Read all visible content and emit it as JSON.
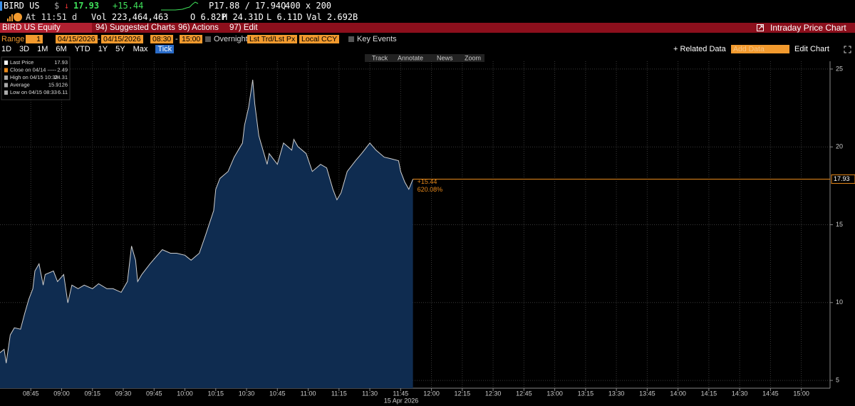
{
  "header": {
    "ticker": "BIRD US",
    "currency": "$",
    "arrow": "↓",
    "price": "17.93",
    "change": "+15.44",
    "bid_ask": "P17.88 / 17.94Q",
    "size": "400 x 200",
    "time": "At 11:51 d",
    "volume": "Vol 223,464,463",
    "open": "O 6.82P",
    "high": "H 24.31D",
    "low": "L 6.11D",
    "value": "Val 2.692B"
  },
  "menu": {
    "security": "BIRD US Equity",
    "items": [
      "94) Suggested Charts",
      "96) Actions",
      "97) Edit"
    ],
    "title": "Intraday Price Chart"
  },
  "controls": {
    "range_label": "Range",
    "range": "1",
    "start_date": "04/15/2026",
    "dash": "-",
    "end_date": "04/15/2026",
    "start_time": "08:30",
    "end_time": "15:00",
    "overnight": "Overnight",
    "price_field": "Lst Trd/Lst Px",
    "currency": "Local CCY",
    "key_events": "Key Events",
    "periods": [
      "1D",
      "3D",
      "1M",
      "6M",
      "YTD",
      "1Y",
      "5Y",
      "Max",
      "Tick"
    ],
    "related": "+ Related Data",
    "add_data": "Add Data",
    "edit_chart": "Edit Chart"
  },
  "toolbar": [
    "Track",
    "Annotate",
    "News",
    "Zoom"
  ],
  "chart_data": {
    "type": "area",
    "color": "#0f2c50",
    "line_color": "#cfcfcf",
    "last_line_color": "#e8891a",
    "grid": true,
    "x_label": "15 Apr 2026",
    "x": [
      510,
      512,
      513,
      515,
      517,
      520,
      522,
      524,
      526,
      527,
      529,
      531,
      532,
      536,
      538,
      541,
      543,
      545,
      548,
      551,
      555,
      558,
      562,
      565,
      569,
      572,
      574,
      576,
      577,
      579,
      583,
      586,
      589,
      593,
      596,
      600,
      603,
      607,
      610,
      614,
      615,
      617,
      621,
      624,
      628,
      629,
      631,
      633,
      634,
      636,
      638,
      640,
      641,
      645,
      648,
      652,
      653,
      655,
      659,
      662,
      666,
      669,
      672,
      674,
      676,
      679,
      683,
      686,
      690,
      693,
      697,
      700,
      704,
      705,
      707,
      709,
      711
    ],
    "values": [
      6.78,
      7.0,
      6.11,
      7.92,
      8.38,
      8.29,
      9.29,
      10.21,
      10.89,
      12.03,
      12.49,
      11.12,
      11.8,
      12.03,
      11.35,
      11.8,
      9.98,
      11.12,
      10.89,
      11.12,
      10.89,
      11.21,
      10.89,
      10.89,
      10.66,
      11.35,
      13.63,
      12.72,
      11.35,
      11.8,
      12.49,
      12.95,
      13.4,
      13.17,
      13.17,
      13.04,
      12.72,
      13.17,
      14.32,
      15.91,
      17.28,
      17.97,
      18.42,
      19.34,
      20.25,
      21.39,
      22.53,
      24.31,
      22.76,
      20.71,
      19.79,
      18.88,
      19.57,
      18.88,
      20.25,
      19.79,
      20.48,
      20.02,
      19.57,
      18.42,
      18.88,
      18.65,
      17.28,
      16.6,
      17.05,
      18.42,
      19.11,
      19.57,
      20.25,
      19.79,
      19.34,
      19.25,
      19.11,
      18.42,
      17.74,
      17.28,
      17.93
    ],
    "xlim": [
      510,
      914
    ],
    "ylim": [
      4.5,
      25.5
    ],
    "xticks": [
      {
        "value": 525,
        "label": "08:45"
      },
      {
        "value": 540,
        "label": "09:00"
      },
      {
        "value": 555,
        "label": "09:15"
      },
      {
        "value": 570,
        "label": "09:30"
      },
      {
        "value": 585,
        "label": "09:45"
      },
      {
        "value": 600,
        "label": "10:00"
      },
      {
        "value": 615,
        "label": "10:15"
      },
      {
        "value": 630,
        "label": "10:30"
      },
      {
        "value": 645,
        "label": "10:45"
      },
      {
        "value": 660,
        "label": "11:00"
      },
      {
        "value": 675,
        "label": "11:15"
      },
      {
        "value": 690,
        "label": "11:30"
      },
      {
        "value": 705,
        "label": "11:45"
      },
      {
        "value": 720,
        "label": "12:00"
      },
      {
        "value": 735,
        "label": "12:15"
      },
      {
        "value": 750,
        "label": "12:30"
      },
      {
        "value": 765,
        "label": "12:45"
      },
      {
        "value": 780,
        "label": "13:00"
      },
      {
        "value": 795,
        "label": "13:15"
      },
      {
        "value": 810,
        "label": "13:30"
      },
      {
        "value": 825,
        "label": "13:45"
      },
      {
        "value": 840,
        "label": "14:00"
      },
      {
        "value": 855,
        "label": "14:15"
      },
      {
        "value": 870,
        "label": "14:30"
      },
      {
        "value": 885,
        "label": "14:45"
      },
      {
        "value": 900,
        "label": "15:00"
      }
    ],
    "yticks": [
      5,
      10,
      15,
      20,
      25
    ],
    "annotations": [
      "+15.44",
      "620.08%"
    ],
    "legend": [
      {
        "label": "Last Price",
        "value": "17.93"
      },
      {
        "label": "Close on 04/14 -----",
        "value": "2.49"
      },
      {
        "label": "High on 04/15 10:32",
        "value": "24.31"
      },
      {
        "label": "Average",
        "value": "15.9126"
      },
      {
        "label": "Low on 04/15 08:33",
        "value": "6.11"
      }
    ]
  }
}
